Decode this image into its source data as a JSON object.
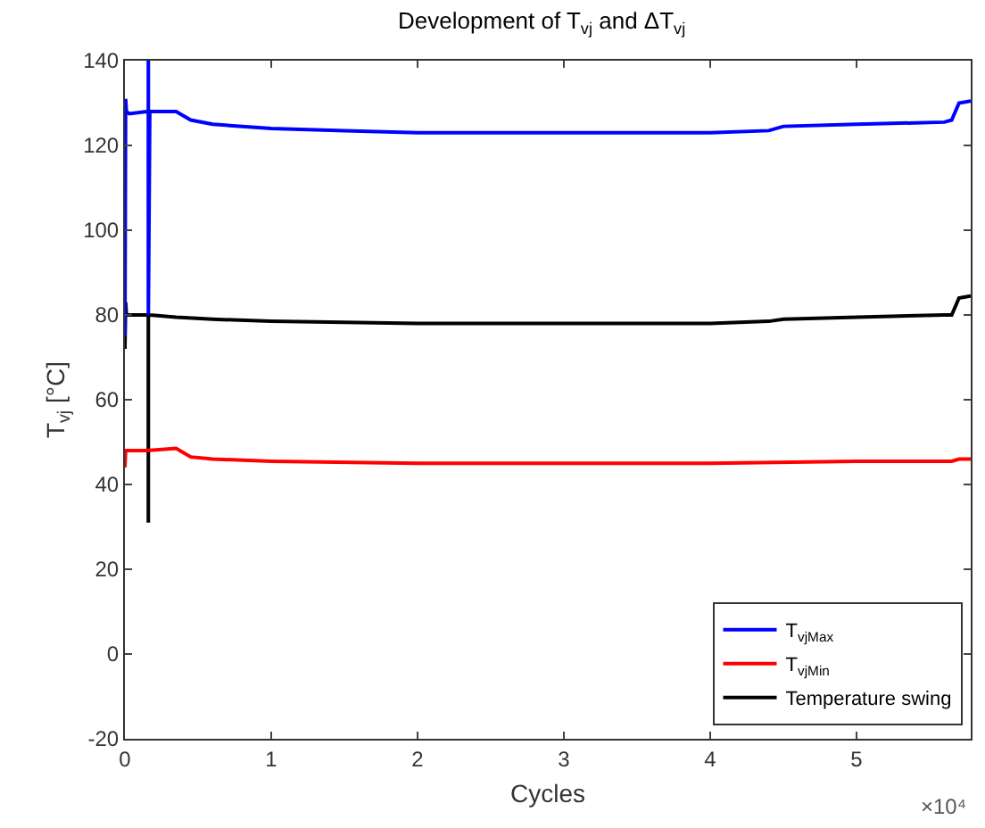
{
  "chart_data": {
    "type": "line",
    "title": "Development of T$_{vj}$ and ΔT$_{vj}$",
    "xlabel": "Cycles",
    "ylabel": "T$_{vj}$ [°C]",
    "annotations": [
      "×10⁴"
    ],
    "xlim": [
      0,
      5.78
    ],
    "ylim": [
      -20,
      140
    ],
    "xticks": [
      0,
      1,
      2,
      3,
      4,
      5
    ],
    "yticks": [
      -20,
      0,
      20,
      40,
      60,
      80,
      100,
      120,
      140
    ],
    "legend": "bottom right",
    "marker": "none",
    "line_style": "solid",
    "series": [
      {
        "name": "T$_{vjMax}$",
        "color": "#0000ff",
        "x": [
          0,
          0.005,
          0.01,
          0.03,
          0.15,
          0.16,
          0.1601,
          0.1602,
          0.17,
          0.35,
          0.45,
          0.6,
          1.0,
          1.5,
          2.0,
          3.0,
          4.0,
          4.4,
          4.5,
          5.0,
          5.6,
          5.65,
          5.7,
          5.78
        ],
        "values": [
          75,
          131,
          128,
          127.5,
          128,
          128,
          140,
          80,
          128,
          128,
          126,
          125,
          124,
          123.5,
          123,
          123,
          123,
          123.5,
          124.5,
          125,
          125.5,
          126,
          130,
          130.5
        ]
      },
      {
        "name": "T$_{vjMin}$",
        "color": "#ff0000",
        "x": [
          0,
          0.005,
          0.03,
          0.15,
          0.35,
          0.45,
          0.6,
          1.0,
          2.0,
          3.0,
          4.0,
          5.0,
          5.65,
          5.7,
          5.78
        ],
        "values": [
          44,
          48,
          48,
          48,
          48.5,
          46.5,
          46,
          45.5,
          45,
          45,
          45,
          45.5,
          45.5,
          46,
          46
        ]
      },
      {
        "name": "Temperature swing",
        "color": "#000000",
        "x": [
          0,
          0.005,
          0.01,
          0.03,
          0.15,
          0.16,
          0.1601,
          0.1602,
          0.17,
          0.35,
          0.6,
          1.0,
          2.0,
          3.0,
          4.0,
          4.4,
          4.5,
          5.0,
          5.6,
          5.65,
          5.7,
          5.78
        ],
        "values": [
          72,
          83,
          80,
          80,
          80,
          80,
          31,
          80,
          80,
          79.5,
          79,
          78.5,
          78,
          78,
          78,
          78.5,
          79,
          79.5,
          80,
          80,
          84,
          84.5
        ]
      }
    ]
  }
}
